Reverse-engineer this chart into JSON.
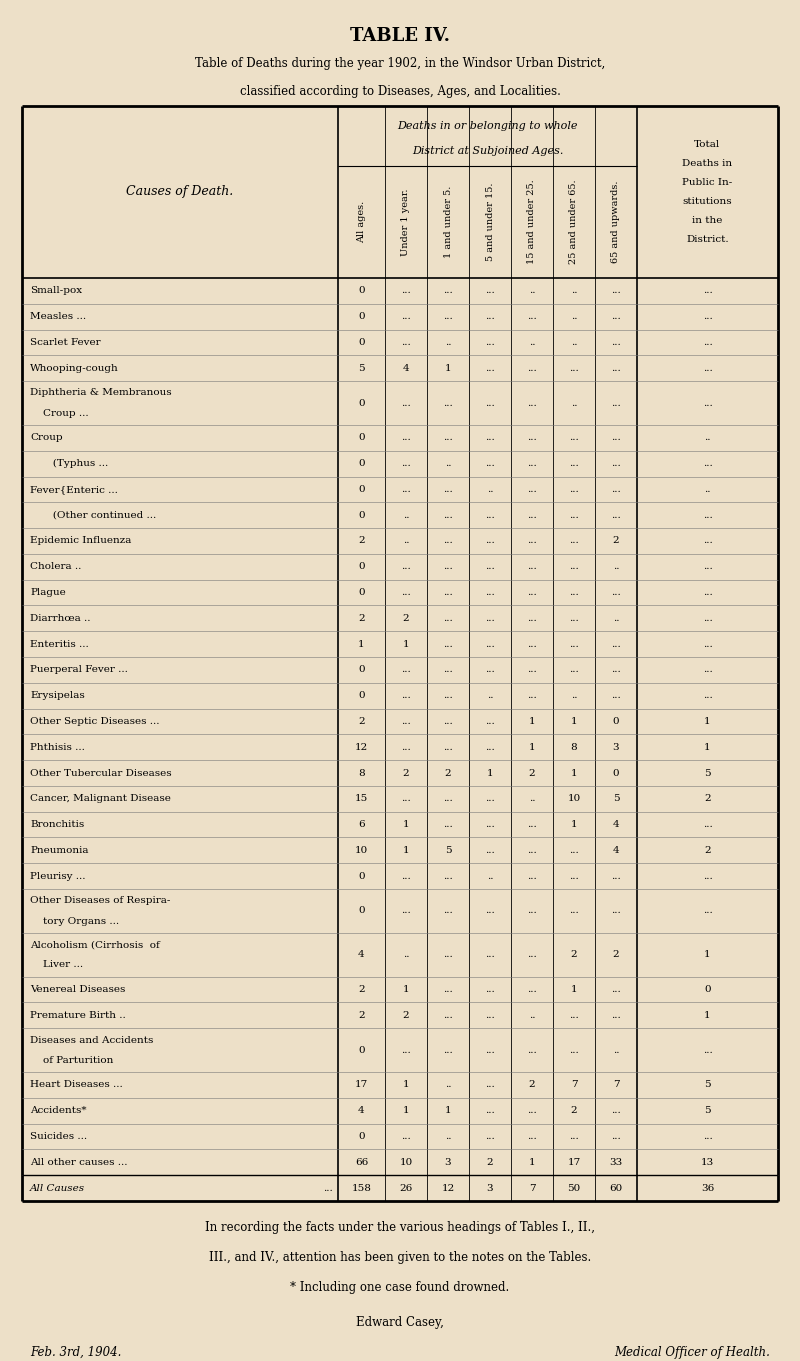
{
  "title": "TABLE IV.",
  "subtitle1": "Table of Deaths during the year 1902, in the Windsor Urban District,",
  "subtitle2": "classified according to Diseases, Ages, and Localities.",
  "bg_color": "#ede0c8",
  "col_headers_rotated": [
    "All ages.",
    "Under 1 year.",
    "1 and under 5.",
    "5 and under 15.",
    "15 and under 25.",
    "25 and under 65.",
    "65 and upwards."
  ],
  "rows": [
    {
      "label": "Small-pox",
      "label_trail": "   ...   ..",
      "vals": [
        "0",
        "...",
        "...",
        "...",
        "..",
        "..",
        "...",
        "..."
      ]
    },
    {
      "label": "Measles ...",
      "label_trail": "   ...   ...",
      "vals": [
        "0",
        "...",
        "...",
        "...",
        "...",
        "..",
        "...",
        "..."
      ]
    },
    {
      "label": "Scarlet Fever",
      "label_trail": "   ...   ...",
      "vals": [
        "0",
        "...",
        "..",
        "...",
        "..",
        "..",
        "...",
        "..."
      ]
    },
    {
      "label": "Whooping-cough",
      "label_trail": "   ...",
      "vals": [
        "5",
        "4",
        "1",
        "...",
        "...",
        "...",
        "...",
        "..."
      ]
    },
    {
      "label": "Diphtheria & Membranous",
      "label2": "    Croup ...",
      "label_trail": "   ...   ...",
      "vals": [
        "0",
        "...",
        "...",
        "...",
        "...",
        "..",
        "...",
        "..."
      ]
    },
    {
      "label": "Croup",
      "label_trail": "   ...   ...   ...",
      "vals": [
        "0",
        "...",
        "...",
        "...",
        "...",
        "...",
        "...",
        ".."
      ]
    },
    {
      "label": "       (Typhus ...",
      "label_trail": "   ...",
      "vals": [
        "0",
        "...",
        "..",
        "...",
        "...",
        "...",
        "...",
        "..."
      ]
    },
    {
      "label": "Fever{Enteric ...",
      "label_trail": "   ...",
      "vals": [
        "0",
        "...",
        "...",
        "..",
        "...",
        "...",
        "...",
        ".."
      ]
    },
    {
      "label": "       (Other continued ...",
      "label_trail": "",
      "vals": [
        "0",
        "..",
        "...",
        "...",
        "...",
        "...",
        "...",
        "..."
      ]
    },
    {
      "label": "Epidemic Influenza",
      "label_trail": "   ...",
      "vals": [
        "2",
        "..",
        "...",
        "...",
        "...",
        "...",
        "2",
        "..."
      ]
    },
    {
      "label": "Cholera ..",
      "label_trail": "   ...   ...",
      "vals": [
        "0",
        "...",
        "...",
        "...",
        "...",
        "...",
        "..",
        "..."
      ]
    },
    {
      "label": "Plague",
      "label_trail": "   ...   ...   ...",
      "vals": [
        "0",
        "...",
        "...",
        "...",
        "...",
        "...",
        "...",
        "..."
      ]
    },
    {
      "label": "Diarrhœa ..",
      "label_trail": "   ...   ...",
      "vals": [
        "2",
        "2",
        "...",
        "...",
        "...",
        "...",
        "..",
        "..."
      ]
    },
    {
      "label": "Enteritis ...",
      "label_trail": "   ...   ...",
      "vals": [
        "1",
        "1",
        "...",
        "...",
        "...",
        "...",
        "...",
        "..."
      ]
    },
    {
      "label": "Puerperal Fever ...",
      "label_trail": "   ...",
      "vals": [
        "0",
        "...",
        "...",
        "...",
        "...",
        "...",
        "...",
        "..."
      ]
    },
    {
      "label": "Erysipelas",
      "label_trail": "   ...   ...",
      "vals": [
        "0",
        "...",
        "...",
        "..",
        "...",
        "..",
        "...",
        "..."
      ]
    },
    {
      "label": "Other Septic Diseases ...",
      "label_trail": "",
      "vals": [
        "2",
        "...",
        "...",
        "...",
        "1",
        "1",
        "0",
        "1"
      ]
    },
    {
      "label": "Phthisis ...",
      "label_trail": "   ...   ...",
      "vals": [
        "12",
        "...",
        "...",
        "...",
        "1",
        "8",
        "3",
        "1"
      ]
    },
    {
      "label": "Other Tubercular Diseases",
      "label_trail": "",
      "vals": [
        "8",
        "2",
        "2",
        "1",
        "2",
        "1",
        "0",
        "5"
      ]
    },
    {
      "label": "Cancer, Malignant Disease",
      "label_trail": "",
      "vals": [
        "15",
        "...",
        "...",
        "...",
        "..",
        "10",
        "5",
        "2"
      ]
    },
    {
      "label": "Bronchitis",
      "label_trail": "   ..   ...",
      "vals": [
        "6",
        "1",
        "...",
        "...",
        "...",
        "1",
        "4",
        "..."
      ]
    },
    {
      "label": "Pneumonia",
      "label_trail": "   ...   ...",
      "vals": [
        "10",
        "1",
        "5",
        "...",
        "...",
        "...",
        "4",
        "2"
      ]
    },
    {
      "label": "Pleurisy ...",
      "label_trail": "   ...   ...",
      "vals": [
        "0",
        "...",
        "...",
        "..",
        "...",
        "...",
        "...",
        "..."
      ]
    },
    {
      "label": "Other Diseases of Respira-",
      "label2": "    tory Organs ...",
      "label_trail": "   ...",
      "vals": [
        "0",
        "...",
        "...",
        "...",
        "...",
        "...",
        "...",
        "..."
      ]
    },
    {
      "label": "Alcoholism (Cirrhosis  of",
      "label2": "    Liver ...",
      "label_trail": "   ...   ...",
      "vals": [
        "4",
        "..",
        "...",
        "...",
        "...",
        "2",
        "2",
        "1"
      ]
    },
    {
      "label": "Venereal Diseases",
      "label_trail": "   ...",
      "vals": [
        "2",
        "1",
        "...",
        "...",
        "...",
        "1",
        "...",
        "0"
      ]
    },
    {
      "label": "Premature Birth ..",
      "label_trail": "   ...",
      "vals": [
        "2",
        "2",
        "...",
        "...",
        "..",
        "...",
        "...",
        "1"
      ]
    },
    {
      "label": "Diseases and Accidents",
      "label2": "    of Parturition",
      "label_trail": "   ...",
      "vals": [
        "0",
        "...",
        "...",
        "...",
        "...",
        "...",
        "..",
        "..."
      ]
    },
    {
      "label": "Heart Diseases ...",
      "label_trail": "   ...",
      "vals": [
        "17",
        "1",
        "..",
        "...",
        "2",
        "7",
        "7",
        "5"
      ]
    },
    {
      "label": "Accidents*",
      "label_trail": "   ...   ...",
      "vals": [
        "4",
        "1",
        "1",
        "...",
        "...",
        "2",
        "...",
        "5"
      ]
    },
    {
      "label": "Suicides ...",
      "label_trail": "   ...   ...",
      "vals": [
        "0",
        "...",
        "..",
        "...",
        "...",
        "...",
        "...",
        "..."
      ]
    },
    {
      "label": "All other causes ...",
      "label_trail": "   ...",
      "vals": [
        "66",
        "10",
        "3",
        "2",
        "1",
        "17",
        "33",
        "13"
      ]
    }
  ],
  "total_row": {
    "label": "All Causes",
    "label_trail": "   ...",
    "vals": [
      "158",
      "26",
      "12",
      "3",
      "7",
      "50",
      "60",
      "36"
    ]
  },
  "footnote1": "In recording the facts under the various headings of Tables I., II.,",
  "footnote2": "III., and IV., attention has been given to the notes on the Tables.",
  "footnote3": "* Including one case found drowned.",
  "footnote4": "Edward Casey,",
  "footnote5": "Feb. 3rd, 1904.",
  "footnote6": "Medical Officer of Health."
}
